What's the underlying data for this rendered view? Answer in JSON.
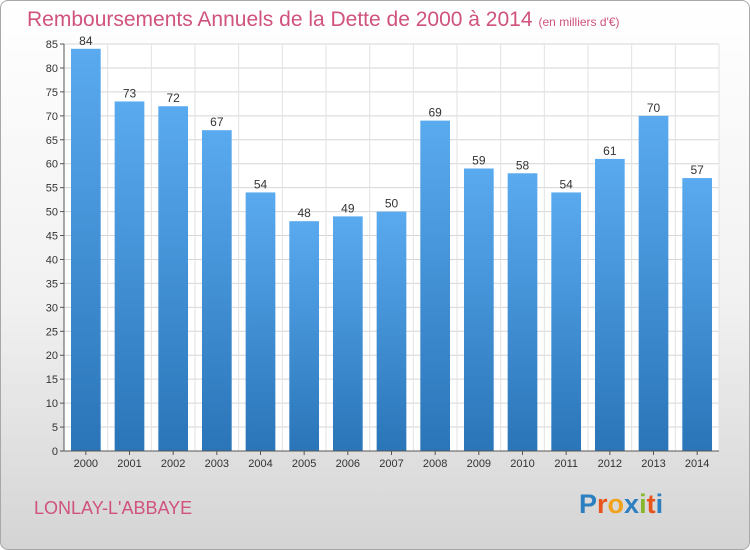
{
  "title": "Remboursements Annuels de la Dette de 2000 à 2014",
  "unit": "(en milliers d'€)",
  "commune": "LONLAY-L'ABBAYE",
  "logo": {
    "letters": [
      "P",
      "r",
      "o",
      "x",
      "i",
      "t",
      "i"
    ],
    "colors": [
      "#2c7fc0",
      "#e8541c",
      "#f0a21b",
      "#2c7fc0",
      "#86b82a",
      "#e8541c",
      "#2c7fc0"
    ]
  },
  "colors": {
    "bar": "#3b8fd6",
    "accent": "#d0527f"
  },
  "chart_data": {
    "type": "bar",
    "title": "Remboursements Annuels de la Dette de 2000 à 2014",
    "subtitle": "(en milliers d'€)",
    "categories": [
      "2000",
      "2001",
      "2002",
      "2003",
      "2004",
      "2005",
      "2006",
      "2007",
      "2008",
      "2009",
      "2010",
      "2011",
      "2012",
      "2013",
      "2014"
    ],
    "values": [
      84,
      73,
      72,
      67,
      54,
      48,
      49,
      50,
      69,
      59,
      58,
      54,
      61,
      70,
      57
    ],
    "xlabel": "",
    "ylabel": "",
    "ylim": [
      0,
      85
    ],
    "yticks": [
      0,
      5,
      10,
      15,
      20,
      25,
      30,
      35,
      40,
      45,
      50,
      55,
      60,
      65,
      70,
      75,
      80,
      85
    ],
    "grid": true,
    "data_labels": true
  }
}
